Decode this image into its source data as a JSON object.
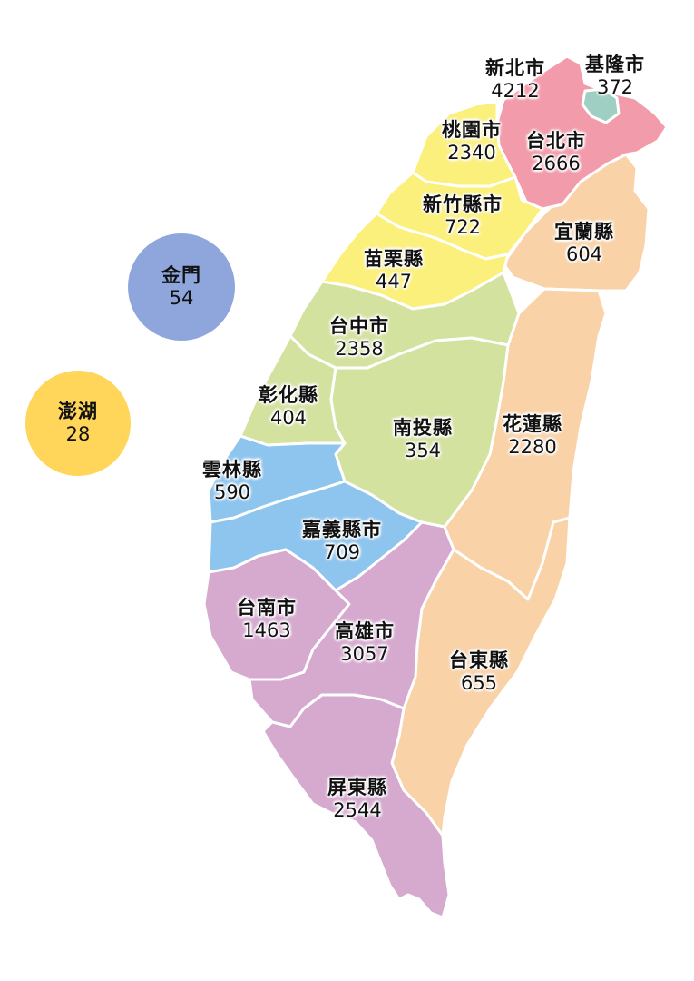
{
  "colors": {
    "north_red": "#f29bab",
    "keelung_teal": "#9fcfc3",
    "yellow": "#fbf07b",
    "green": "#d4e2a0",
    "blue": "#8ec5ef",
    "purple": "#d6aacf",
    "peach": "#f9d2a7",
    "kinmen": "#8ea6db",
    "penghu": "#ffd659"
  },
  "regions": {
    "new_taipei": {
      "name": "新北市",
      "count": "4212"
    },
    "keelung": {
      "name": "基隆市",
      "count": "372"
    },
    "taipei": {
      "name": "台北市",
      "count": "2666"
    },
    "taoyuan": {
      "name": "桃園市",
      "count": "2340"
    },
    "hsinchu": {
      "name": "新竹縣市",
      "count": "722"
    },
    "yilan": {
      "name": "宜蘭縣",
      "count": "604"
    },
    "miaoli": {
      "name": "苗栗縣",
      "count": "447"
    },
    "taichung": {
      "name": "台中市",
      "count": "2358"
    },
    "changhua": {
      "name": "彰化縣",
      "count": "404"
    },
    "nantou": {
      "name": "南投縣",
      "count": "354"
    },
    "hualien": {
      "name": "花蓮縣",
      "count": "2280"
    },
    "yunlin": {
      "name": "雲林縣",
      "count": "590"
    },
    "chiayi": {
      "name": "嘉義縣市",
      "count": "709"
    },
    "tainan": {
      "name": "台南市",
      "count": "1463"
    },
    "kaohsiung": {
      "name": "高雄市",
      "count": "3057"
    },
    "taitung": {
      "name": "台東縣",
      "count": "655"
    },
    "pingtung": {
      "name": "屏東縣",
      "count": "2544"
    },
    "kinmen": {
      "name": "金門",
      "count": "54"
    },
    "penghu": {
      "name": "澎湖",
      "count": "28"
    }
  }
}
